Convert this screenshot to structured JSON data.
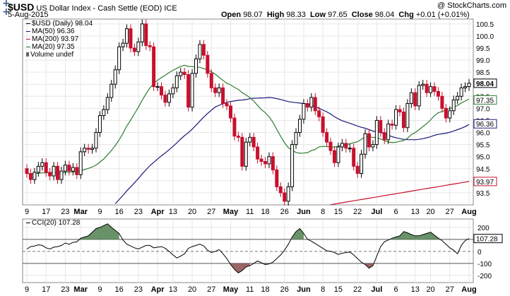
{
  "header": {
    "ticker": "$USD",
    "name": "US Dollar Index - Cash Settle (EOD)",
    "exchange": "ICE",
    "date": "5-Aug-2015",
    "copyright": "@ StockCharts.com",
    "open_label": "Open",
    "open": "98.07",
    "high_label": "High",
    "high": "98.33",
    "low_label": "Low",
    "low": "97.65",
    "close_label": "Close",
    "close": "98.04",
    "chg_label": "Chg",
    "chg": "+0.01 (+0.01%)"
  },
  "legend": {
    "main": "$USD (Daily) 98.04",
    "ma50": "MA(50) 96.36",
    "ma200": "MA(200) 93.97",
    "ma20": "MA(20) 97.35",
    "volume": "Volume undef"
  },
  "cci_legend": "CCI(20) 107.28",
  "colors": {
    "up": "#000000",
    "down": "#c8102e",
    "ma50": "#1a1a7a",
    "ma200": "#c8102e",
    "ma20": "#2e7d32",
    "cci_fill_pos": "#4f7f4f",
    "cci_fill_neg": "#8a4a4a"
  },
  "chart_data": [
    {
      "type": "candlestick",
      "title": "$USD (Daily) 98.04",
      "ylim": [
        93.0,
        100.7
      ],
      "yticks": [
        93.5,
        94.0,
        94.5,
        95.0,
        95.5,
        96.0,
        96.5,
        97.0,
        97.5,
        98.0,
        98.5,
        99.0,
        99.5,
        100.0,
        100.5
      ],
      "x_tick_labels": [
        "9",
        "17",
        "23",
        "Mar",
        "9",
        "16",
        "23",
        "Apr",
        "13",
        "20",
        "27",
        "May",
        "11",
        "18",
        "26",
        "Jun",
        "8",
        "15",
        "22",
        "Jul",
        "6",
        "13",
        "20",
        "27",
        "Aug"
      ],
      "last_value_tags": [
        {
          "label": "98.04",
          "value": 98.04,
          "color": "#000000"
        },
        {
          "label": "97.35",
          "value": 97.35,
          "color": "#2e7d32"
        },
        {
          "label": "96.36",
          "value": 96.36,
          "color": "#1a1a7a"
        },
        {
          "label": "93.97",
          "value": 93.97,
          "color": "#c8102e"
        }
      ],
      "close": [
        94.3,
        94.05,
        94.35,
        94.6,
        94.75,
        94.35,
        94.2,
        94.6,
        94.05,
        94.4,
        94.65,
        94.4,
        94.55,
        94.25,
        95.2,
        95.35,
        95.3,
        95.35,
        96.0,
        96.7,
        96.95,
        97.45,
        98.0,
        98.6,
        99.55,
        99.7,
        100.3,
        99.5,
        99.35,
        99.75,
        100.5,
        99.6,
        99.55,
        97.9,
        97.9,
        97.55,
        97.25,
        97.6,
        97.85,
        98.35,
        98.5,
        98.4,
        97.05,
        98.45,
        99.05,
        99.65,
        99.2,
        98.45,
        97.85,
        97.65,
        97.85,
        97.2,
        97.1,
        96.6,
        95.85,
        95.8,
        94.6,
        95.6,
        95.8,
        95.4,
        94.9,
        94.8,
        94.7,
        95.0,
        94.45,
        93.75,
        93.5,
        93.15,
        93.75,
        95.5,
        96.0,
        96.55,
        97.2,
        97.05,
        97.45,
        96.9,
        96.65,
        96.0,
        95.6,
        95.25,
        94.75,
        95.4,
        95.55,
        95.35,
        95.35,
        94.6,
        94.3,
        95.1,
        95.95,
        95.4,
        95.5,
        96.5,
        96.0,
        95.7,
        96.35,
        96.3,
        96.95,
        96.85,
        96.2,
        97.2,
        97.65,
        97.1,
        97.95,
        98.0,
        97.65,
        97.9,
        97.7,
        97.5,
        97.0,
        96.6,
        96.9,
        97.35,
        97.5,
        97.85,
        97.9,
        98.04
      ]
    },
    {
      "type": "line",
      "title": "CCI(20) 107.28",
      "ylim": [
        -260,
        270
      ],
      "yticks": [
        -200,
        -100,
        0,
        100,
        200
      ],
      "overbought": 100,
      "oversold": -100,
      "last_value": 107.28,
      "x_tick_labels": [
        "9",
        "17",
        "23",
        "Mar",
        "9",
        "16",
        "23",
        "Apr",
        "13",
        "20",
        "27",
        "May",
        "11",
        "18",
        "26",
        "Jun",
        "8",
        "15",
        "22",
        "Jul",
        "6",
        "13",
        "20",
        "27",
        "Aug"
      ],
      "values": [
        20,
        40,
        45,
        55,
        50,
        30,
        20,
        35,
        40,
        50,
        70,
        60,
        75,
        80,
        110,
        120,
        130,
        160,
        190,
        200,
        215,
        230,
        200,
        175,
        150,
        95,
        60,
        45,
        30,
        20,
        35,
        50,
        50,
        30,
        35,
        40,
        25,
        0,
        -30,
        -55,
        -40,
        -20,
        25,
        40,
        50,
        60,
        45,
        10,
        -10,
        0,
        15,
        -20,
        -60,
        -110,
        -150,
        -180,
        -160,
        -130,
        -120,
        -100,
        -80,
        -95,
        -110,
        -105,
        -90,
        -60,
        -30,
        10,
        60,
        120,
        165,
        190,
        150,
        100,
        85,
        65,
        45,
        25,
        5,
        0,
        -10,
        -25,
        -15,
        -10,
        -5,
        -30,
        -60,
        -90,
        -110,
        -140,
        -120,
        -40,
        40,
        80,
        95,
        110,
        120,
        130,
        165,
        155,
        140,
        130,
        130,
        140,
        150,
        160,
        135,
        110,
        90,
        60,
        30,
        10,
        -20,
        50,
        90,
        107.28
      ]
    }
  ]
}
